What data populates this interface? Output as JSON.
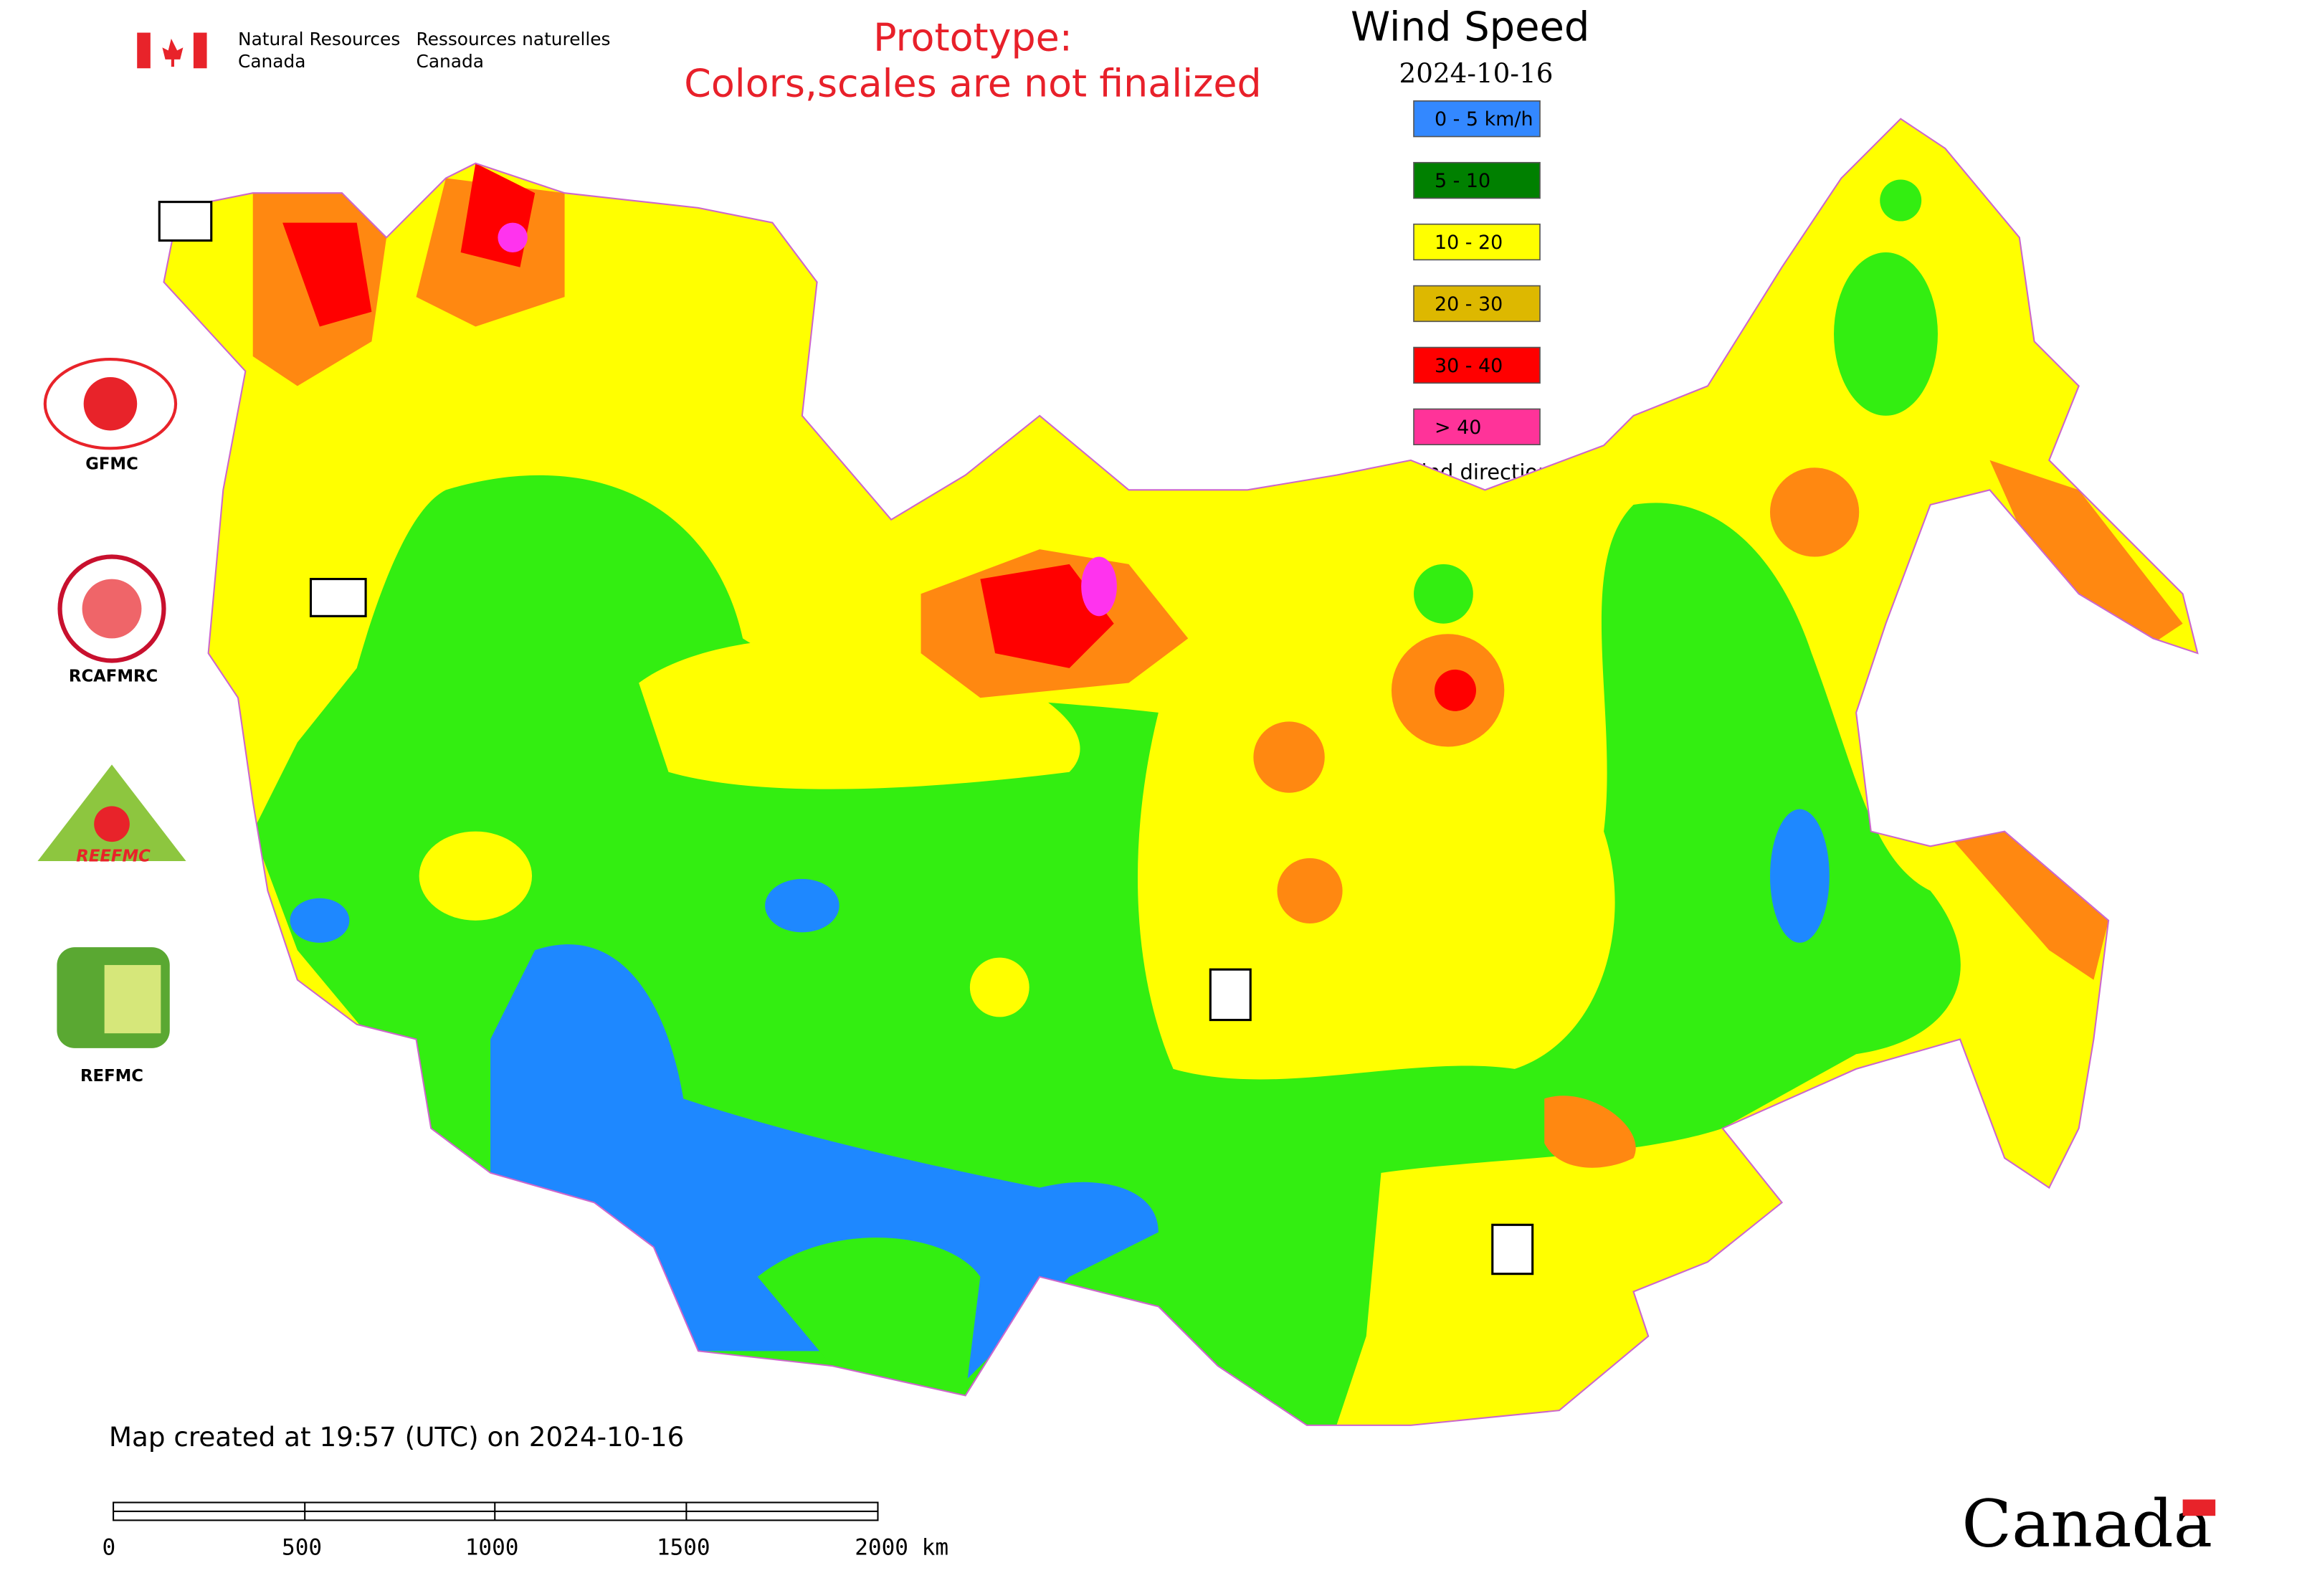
{
  "header": {
    "department_en": [
      "Natural Resources",
      "Canada"
    ],
    "department_fr": [
      "Ressources naturelles",
      "Canada"
    ]
  },
  "notice": [
    "Prototype:",
    "Colors,scales are not finalized"
  ],
  "map": {
    "title": "Wind Speed",
    "date": "2024-10-16",
    "legend": [
      {
        "label": "0 - 5 km/h",
        "color": "#3388ff"
      },
      {
        "label": "5 - 10",
        "color": "#008000"
      },
      {
        "label": "10 - 20",
        "color": "#ffff00"
      },
      {
        "label": "20 - 30",
        "color": "#ddb800"
      },
      {
        "label": "30 - 40",
        "color": "#ff0000"
      },
      {
        "label": "> 40",
        "color": "#ff3399"
      }
    ],
    "wind_direction_label": "Wind direction",
    "created": "Map created at 19:57 (UTC) on 2024-10-16",
    "scale_bar": [
      "0",
      "500",
      "1000",
      "1500",
      "2000  km"
    ]
  },
  "logos": [
    "GFMC",
    "RCAFMRC",
    "REEFMC",
    "REFMC"
  ],
  "wordmark": "Canada"
}
